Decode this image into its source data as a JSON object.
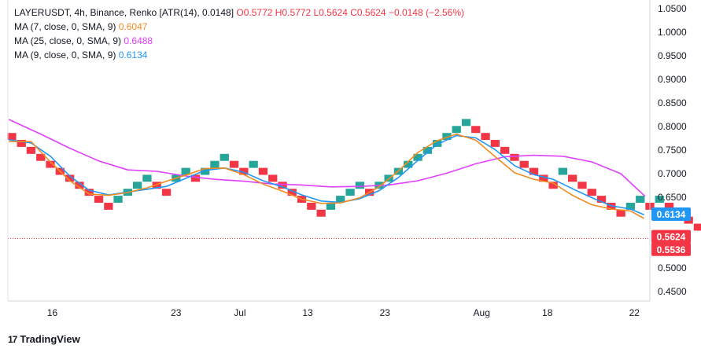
{
  "legend": {
    "title": "LAYERUSDT, 4h, Binance, Renko [ATR(14), 0.0148]",
    "open": "O0.5772",
    "high": "H0.5772",
    "low": "L0.5624",
    "close": "C0.5624",
    "change": "−0.0148 (−2.56%)",
    "ma1_label": "MA (7, close, 0, SMA, 9)",
    "ma1_value": "0.6047",
    "ma2_label": "MA (25, close, 0, SMA, 9)",
    "ma2_value": "0.6488",
    "ma3_label": "MA (9, close, 0, SMA, 9)",
    "ma3_value": "0.6134"
  },
  "footer": {
    "brand": "TradingView"
  },
  "colors": {
    "up": "#26a69a",
    "down": "#f23645",
    "ma7": "#f28b21",
    "ma25": "#e040fb",
    "ma9": "#2196f3",
    "grid": "#e0e3eb",
    "axis_text": "#131722"
  },
  "chart_data": {
    "type": "renko",
    "y_axis": {
      "ticks": [
        1.05,
        1.0,
        0.95,
        0.9,
        0.85,
        0.8,
        0.75,
        0.7,
        0.65,
        0.5,
        0.45
      ],
      "tick_labels": [
        "1.0500",
        "1.0000",
        "0.9500",
        "0.9000",
        "0.8500",
        "0.8000",
        "0.7500",
        "0.7000",
        "0.6500",
        "0.5000",
        "0.4500"
      ],
      "ylim": [
        0.43,
        1.06
      ]
    },
    "x_axis": {
      "ticks": [
        "16",
        "23",
        "Jul",
        "13",
        "23",
        "Aug",
        "18",
        "22"
      ],
      "tick_positions_brick_index": [
        4.2,
        17.0,
        23.6,
        30.6,
        38.6,
        48.6,
        55.4,
        64.4
      ],
      "xlim": [
        -0.4,
        66.0
      ]
    },
    "bricks": [
      {
        "d": "down",
        "o": 0.7864,
        "c": 0.7716
      },
      {
        "d": "down",
        "o": 0.7716,
        "c": 0.7568
      },
      {
        "d": "down",
        "o": 0.7568,
        "c": 0.742
      },
      {
        "d": "down",
        "o": 0.742,
        "c": 0.7272
      },
      {
        "d": "down",
        "o": 0.7272,
        "c": 0.7124
      },
      {
        "d": "down",
        "o": 0.7124,
        "c": 0.6976
      },
      {
        "d": "down",
        "o": 0.6976,
        "c": 0.6828
      },
      {
        "d": "down",
        "o": 0.6828,
        "c": 0.668
      },
      {
        "d": "down",
        "o": 0.668,
        "c": 0.6532
      },
      {
        "d": "down",
        "o": 0.6532,
        "c": 0.6384
      },
      {
        "d": "down",
        "o": 0.6384,
        "c": 0.6236
      },
      {
        "d": "up",
        "o": 0.6384,
        "c": 0.6532
      },
      {
        "d": "up",
        "o": 0.6532,
        "c": 0.668
      },
      {
        "d": "up",
        "o": 0.668,
        "c": 0.6828
      },
      {
        "d": "up",
        "o": 0.6828,
        "c": 0.6976
      },
      {
        "d": "down",
        "o": 0.6828,
        "c": 0.668
      },
      {
        "d": "down",
        "o": 0.668,
        "c": 0.6532
      },
      {
        "d": "up",
        "o": 0.6828,
        "c": 0.6976
      },
      {
        "d": "up",
        "o": 0.6976,
        "c": 0.7124
      },
      {
        "d": "down",
        "o": 0.6976,
        "c": 0.6828
      },
      {
        "d": "up",
        "o": 0.6976,
        "c": 0.7124
      },
      {
        "d": "up",
        "o": 0.7124,
        "c": 0.7272
      },
      {
        "d": "up",
        "o": 0.7272,
        "c": 0.742
      },
      {
        "d": "down",
        "o": 0.7272,
        "c": 0.7124
      },
      {
        "d": "down",
        "o": 0.7124,
        "c": 0.6976
      },
      {
        "d": "up",
        "o": 0.7124,
        "c": 0.7272
      },
      {
        "d": "down",
        "o": 0.7124,
        "c": 0.6976
      },
      {
        "d": "down",
        "o": 0.6976,
        "c": 0.6828
      },
      {
        "d": "down",
        "o": 0.6828,
        "c": 0.668
      },
      {
        "d": "down",
        "o": 0.668,
        "c": 0.6532
      },
      {
        "d": "down",
        "o": 0.6532,
        "c": 0.6384
      },
      {
        "d": "down",
        "o": 0.6384,
        "c": 0.6236
      },
      {
        "d": "down",
        "o": 0.6236,
        "c": 0.6088
      },
      {
        "d": "up",
        "o": 0.6236,
        "c": 0.6384
      },
      {
        "d": "up",
        "o": 0.6384,
        "c": 0.6532
      },
      {
        "d": "up",
        "o": 0.6532,
        "c": 0.668
      },
      {
        "d": "up",
        "o": 0.668,
        "c": 0.6828
      },
      {
        "d": "down",
        "o": 0.668,
        "c": 0.6532
      },
      {
        "d": "up",
        "o": 0.668,
        "c": 0.6828
      },
      {
        "d": "up",
        "o": 0.6828,
        "c": 0.6976
      },
      {
        "d": "up",
        "o": 0.6976,
        "c": 0.7124
      },
      {
        "d": "up",
        "o": 0.7124,
        "c": 0.7272
      },
      {
        "d": "up",
        "o": 0.7272,
        "c": 0.742
      },
      {
        "d": "up",
        "o": 0.742,
        "c": 0.7568
      },
      {
        "d": "up",
        "o": 0.7568,
        "c": 0.7716
      },
      {
        "d": "up",
        "o": 0.7716,
        "c": 0.7864
      },
      {
        "d": "up",
        "o": 0.7864,
        "c": 0.8012
      },
      {
        "d": "up",
        "o": 0.8012,
        "c": 0.816
      },
      {
        "d": "down",
        "o": 0.8012,
        "c": 0.7864
      },
      {
        "d": "down",
        "o": 0.7864,
        "c": 0.7716
      },
      {
        "d": "down",
        "o": 0.7716,
        "c": 0.7568
      },
      {
        "d": "down",
        "o": 0.7568,
        "c": 0.742
      },
      {
        "d": "down",
        "o": 0.742,
        "c": 0.7272
      },
      {
        "d": "down",
        "o": 0.7272,
        "c": 0.7124
      },
      {
        "d": "down",
        "o": 0.7124,
        "c": 0.6976
      },
      {
        "d": "down",
        "o": 0.6976,
        "c": 0.6828
      },
      {
        "d": "down",
        "o": 0.6828,
        "c": 0.668
      },
      {
        "d": "up",
        "o": 0.6976,
        "c": 0.7124
      },
      {
        "d": "down",
        "o": 0.6976,
        "c": 0.6828
      },
      {
        "d": "down",
        "o": 0.6828,
        "c": 0.668
      },
      {
        "d": "down",
        "o": 0.668,
        "c": 0.6532
      },
      {
        "d": "down",
        "o": 0.6532,
        "c": 0.6384
      },
      {
        "d": "down",
        "o": 0.6384,
        "c": 0.6236
      },
      {
        "d": "down",
        "o": 0.6236,
        "c": 0.6088
      },
      {
        "d": "up",
        "o": 0.6236,
        "c": 0.6384
      },
      {
        "d": "up",
        "o": 0.6384,
        "c": 0.6532
      },
      {
        "d": "down",
        "o": 0.6384,
        "c": 0.6236
      },
      {
        "d": "up",
        "o": 0.6384,
        "c": 0.6532
      },
      {
        "d": "down",
        "o": 0.6384,
        "c": 0.6236
      },
      {
        "d": "down",
        "o": 0.6236,
        "c": 0.6088
      },
      {
        "d": "down",
        "o": 0.6088,
        "c": 0.594
      },
      {
        "d": "down",
        "o": 0.594,
        "c": 0.5792
      },
      {
        "d": "down",
        "o": 0.5772,
        "c": 0.5624
      }
    ],
    "series": [
      {
        "name": "MA (25, close, 0, SMA, 9)",
        "color": "#e040fb",
        "points": [
          [
            -0.3,
            0.815
          ],
          [
            3,
            0.784
          ],
          [
            6,
            0.754
          ],
          [
            9,
            0.727
          ],
          [
            12,
            0.708
          ],
          [
            15,
            0.705
          ],
          [
            18,
            0.695
          ],
          [
            21,
            0.688
          ],
          [
            24,
            0.684
          ],
          [
            27,
            0.678
          ],
          [
            30,
            0.676
          ],
          [
            33,
            0.672
          ],
          [
            36,
            0.673
          ],
          [
            39,
            0.676
          ],
          [
            42,
            0.685
          ],
          [
            45,
            0.701
          ],
          [
            48,
            0.721
          ],
          [
            51,
            0.736
          ],
          [
            54,
            0.739
          ],
          [
            57,
            0.737
          ],
          [
            60,
            0.725
          ],
          [
            63,
            0.7
          ],
          [
            65.5,
            0.652
          ]
        ]
      },
      {
        "name": "MA (9, close, 0, SMA, 9)",
        "color": "#2196f3",
        "points": [
          [
            -0.3,
            0.772
          ],
          [
            2,
            0.765
          ],
          [
            4,
            0.737
          ],
          [
            6,
            0.695
          ],
          [
            8,
            0.665
          ],
          [
            10,
            0.655
          ],
          [
            12,
            0.661
          ],
          [
            14,
            0.667
          ],
          [
            16,
            0.673
          ],
          [
            18,
            0.69
          ],
          [
            20,
            0.707
          ],
          [
            22,
            0.712
          ],
          [
            24,
            0.703
          ],
          [
            26,
            0.685
          ],
          [
            28,
            0.672
          ],
          [
            30,
            0.655
          ],
          [
            32,
            0.642
          ],
          [
            34,
            0.639
          ],
          [
            36,
            0.647
          ],
          [
            38,
            0.664
          ],
          [
            40,
            0.692
          ],
          [
            42,
            0.728
          ],
          [
            44,
            0.762
          ],
          [
            46,
            0.781
          ],
          [
            48,
            0.776
          ],
          [
            50,
            0.751
          ],
          [
            52,
            0.717
          ],
          [
            54,
            0.698
          ],
          [
            56,
            0.688
          ],
          [
            58,
            0.668
          ],
          [
            60,
            0.649
          ],
          [
            62,
            0.632
          ],
          [
            64,
            0.625
          ],
          [
            65.4,
            0.613
          ]
        ]
      },
      {
        "name": "MA (7, close, 0, SMA, 9)",
        "color": "#f28b21",
        "points": [
          [
            -0.3,
            0.768
          ],
          [
            2,
            0.768
          ],
          [
            4,
            0.725
          ],
          [
            6,
            0.685
          ],
          [
            8,
            0.657
          ],
          [
            10,
            0.654
          ],
          [
            12,
            0.66
          ],
          [
            14,
            0.67
          ],
          [
            16,
            0.684
          ],
          [
            18,
            0.697
          ],
          [
            20,
            0.711
          ],
          [
            22,
            0.712
          ],
          [
            24,
            0.698
          ],
          [
            26,
            0.678
          ],
          [
            28,
            0.663
          ],
          [
            30,
            0.646
          ],
          [
            32,
            0.637
          ],
          [
            34,
            0.638
          ],
          [
            36,
            0.649
          ],
          [
            38,
            0.672
          ],
          [
            40,
            0.706
          ],
          [
            42,
            0.745
          ],
          [
            44,
            0.77
          ],
          [
            46,
            0.784
          ],
          [
            48,
            0.771
          ],
          [
            50,
            0.736
          ],
          [
            52,
            0.702
          ],
          [
            54,
            0.688
          ],
          [
            56,
            0.68
          ],
          [
            58,
            0.654
          ],
          [
            60,
            0.634
          ],
          [
            62,
            0.625
          ],
          [
            64,
            0.621
          ],
          [
            65.4,
            0.605
          ]
        ]
      }
    ],
    "price_line": 0.5624,
    "price_labels": [
      {
        "value": 0.6134,
        "text": "0.6134",
        "color": "#2196f3",
        "y": 0.6134
      },
      {
        "value": 0.5624,
        "text": "0.5624",
        "color": "#f23645",
        "y": 0.5624
      },
      {
        "value": 0.5536,
        "text": "0.5536",
        "color": "#f23645",
        "y": 0.5536
      }
    ],
    "grid": false,
    "legend_position": "top-left"
  }
}
